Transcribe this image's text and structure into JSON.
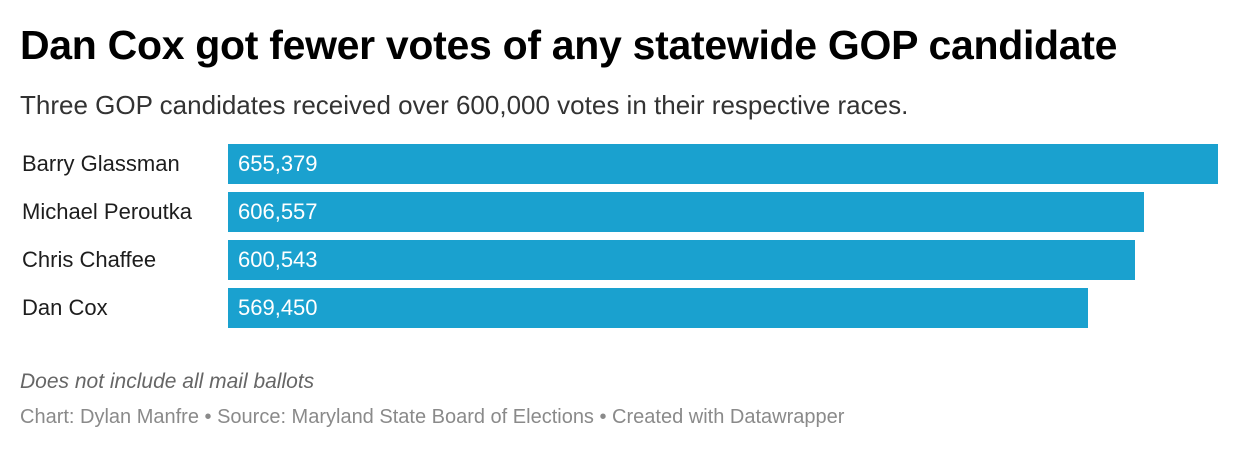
{
  "header": {
    "title": "Dan Cox got fewer votes of any statewide GOP candidate",
    "subtitle": "Three GOP candidates received over 600,000 votes in their respective races."
  },
  "chart_data": {
    "type": "bar",
    "orientation": "horizontal",
    "title": "Dan Cox got fewer votes of any statewide GOP candidate",
    "subtitle": "Three GOP candidates received over 600,000 votes in their respective races.",
    "categories": [
      "Barry Glassman",
      "Michael Peroutka",
      "Chris Chaffee",
      "Dan Cox"
    ],
    "values": [
      655379,
      606557,
      600543,
      569450
    ],
    "value_labels": [
      "655,379",
      "606,557",
      "600,543",
      "569,450"
    ],
    "xlim": [
      0,
      655379
    ],
    "grid": false,
    "bar_color": "#1aa1cf"
  },
  "notes": {
    "note": "Does not include all mail ballots",
    "credit": "Chart: Dylan Manfre • Source: Maryland State Board of Elections • Created with Datawrapper"
  }
}
